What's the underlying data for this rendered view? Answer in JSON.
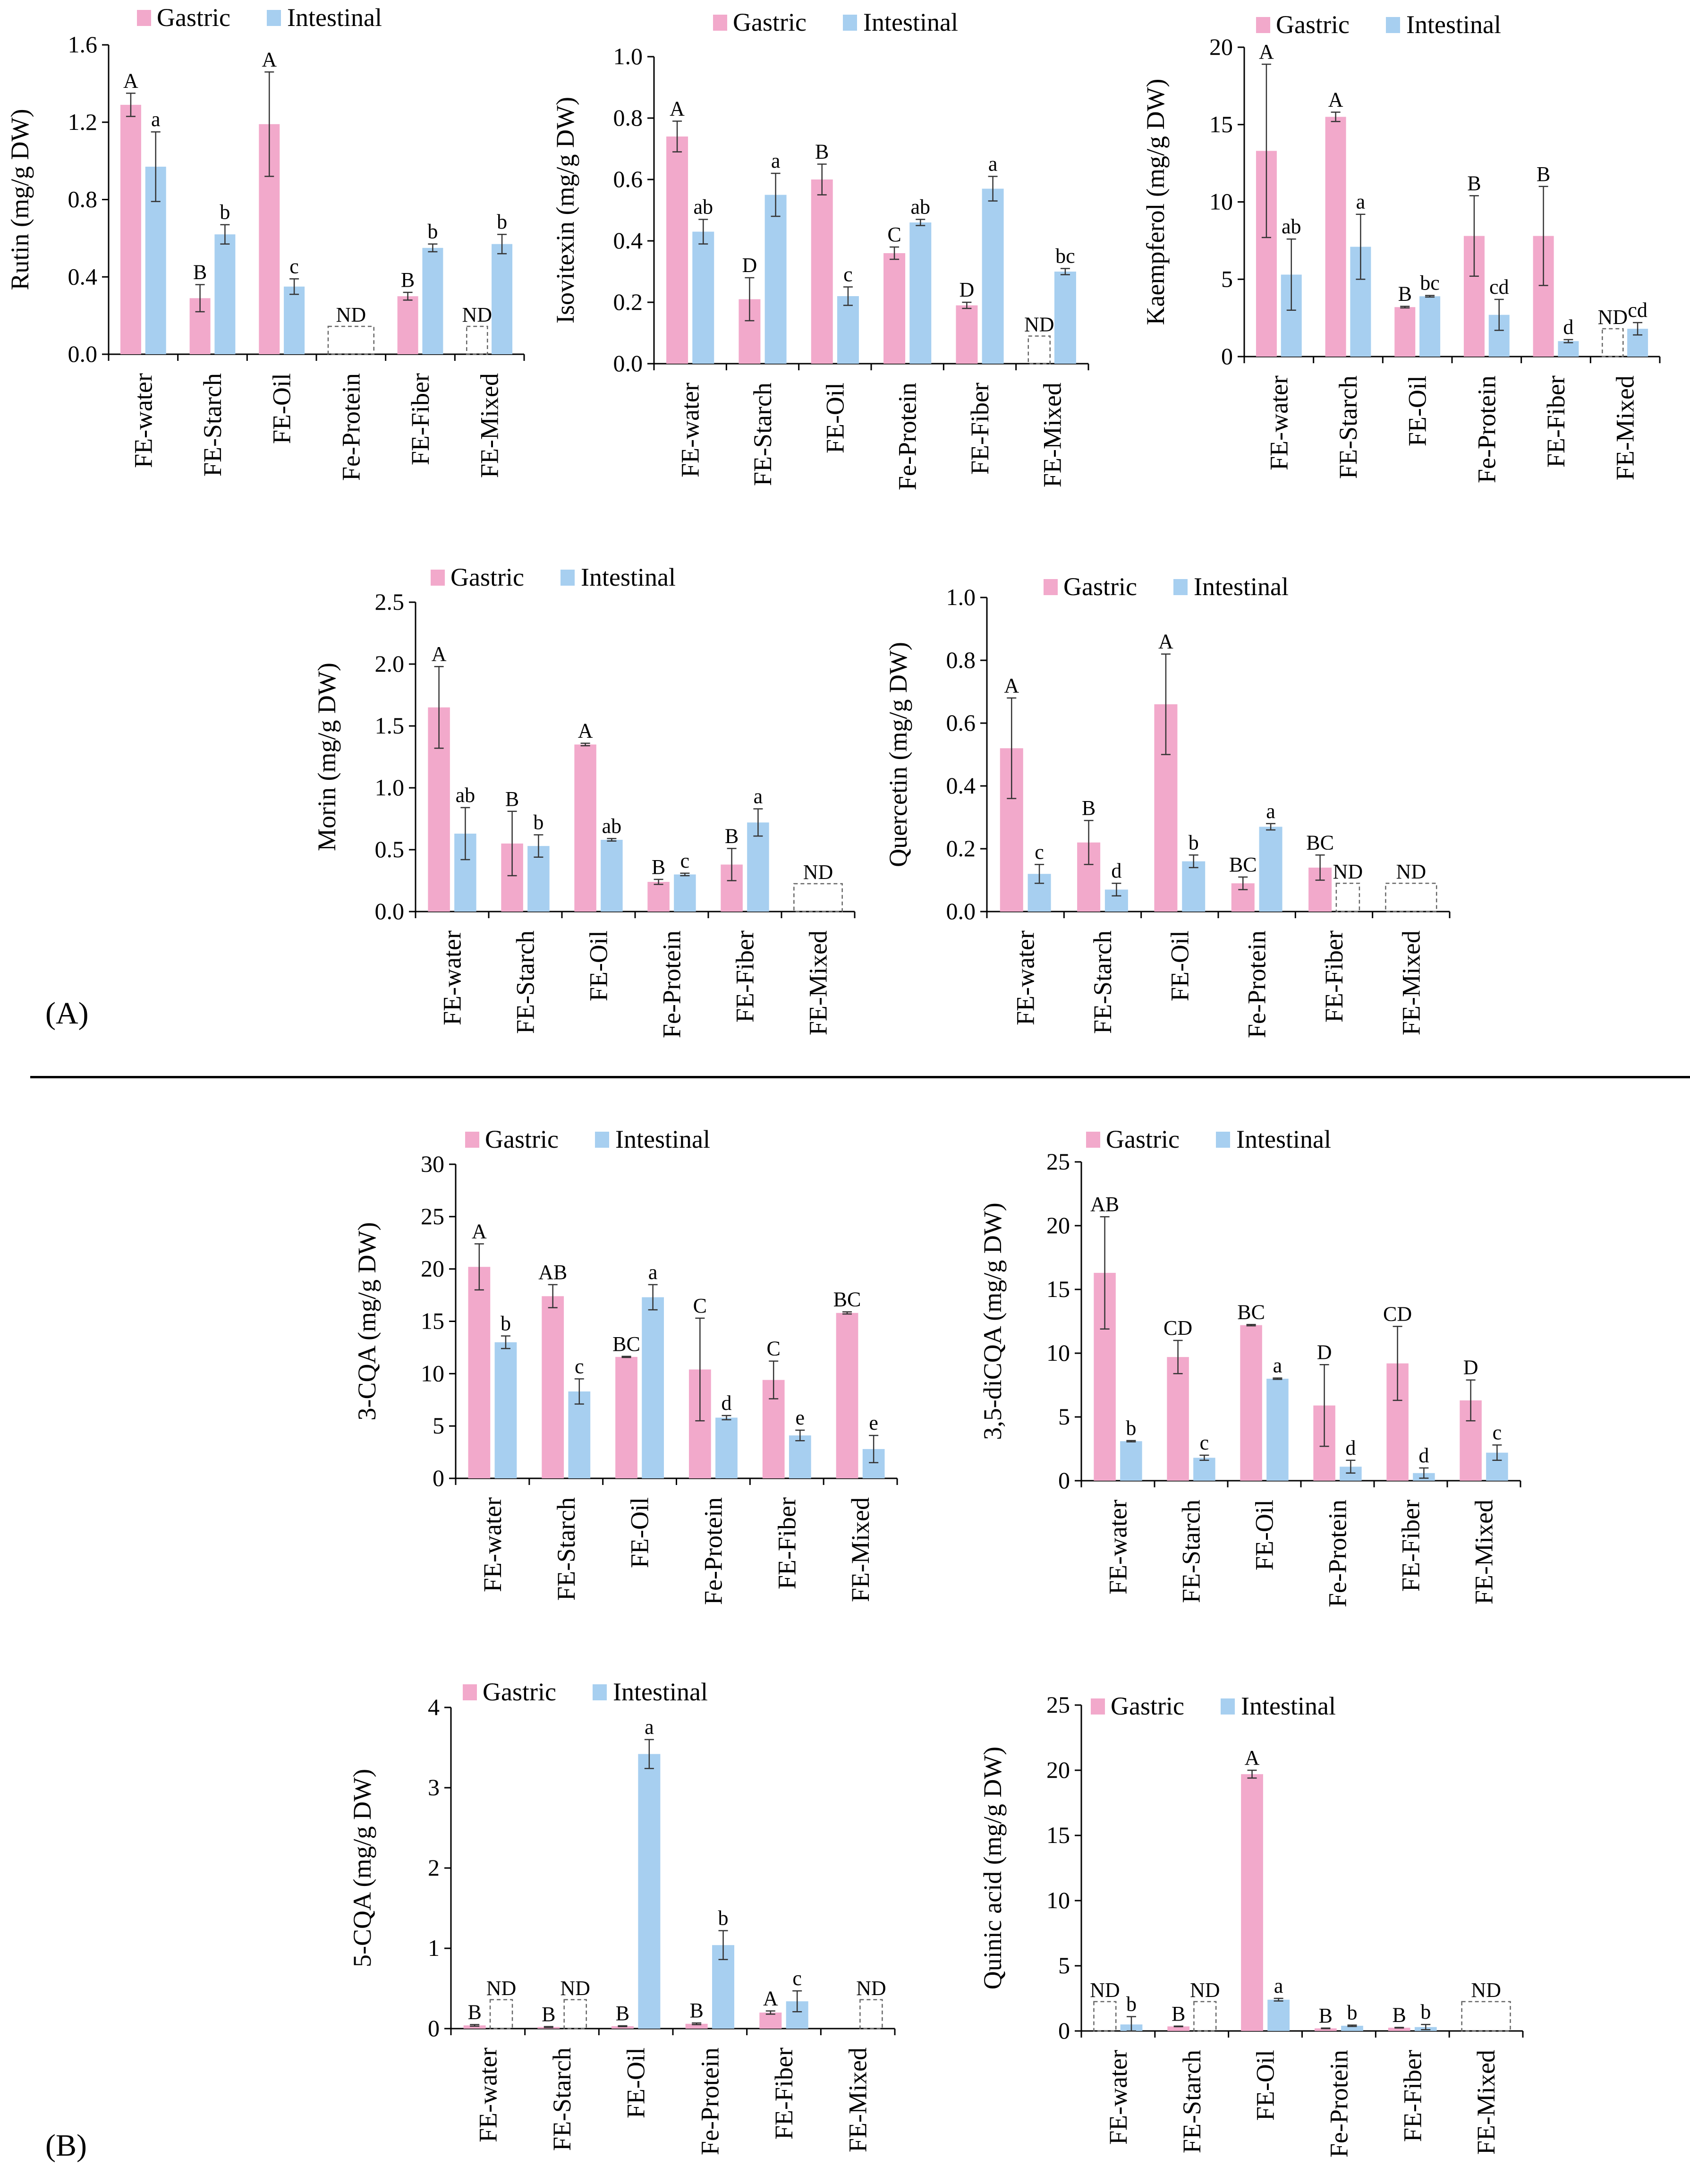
{
  "series_names": [
    "Gastric",
    "Intestinal"
  ],
  "colors": {
    "gastric": "#f2a9cb",
    "intestinal": "#a7cff0",
    "axis": "#000000",
    "error": "#333333",
    "nd_box": "#666666"
  },
  "panel_labels": {
    "a": "(A)",
    "b": "(B)"
  },
  "nd_label": "ND",
  "chart_data": [
    {
      "id": "rutin",
      "type": "bar",
      "panel": "A",
      "ylabel": "Rutin (mg/g DW)",
      "ylim": [
        0,
        1.6
      ],
      "yticks": [
        "0.0",
        "0.4",
        "0.8",
        "1.2",
        "1.6"
      ],
      "categories": [
        "FE-water",
        "FE-Starch",
        "FE-Oil",
        "Fe-Protein",
        "FE-Fiber",
        "FE-Mixed"
      ],
      "series": [
        {
          "name": "Gastric",
          "values": [
            1.29,
            0.29,
            1.19,
            null,
            0.3,
            null
          ],
          "errors": [
            0.06,
            0.07,
            0.27,
            null,
            0.02,
            null
          ],
          "letters": [
            "A",
            "B",
            "A",
            "",
            "B",
            ""
          ]
        },
        {
          "name": "Intestinal",
          "values": [
            0.97,
            0.62,
            0.35,
            null,
            0.55,
            0.57
          ],
          "errors": [
            0.18,
            0.05,
            0.04,
            null,
            0.02,
            0.05
          ],
          "letters": [
            "a",
            "b",
            "c",
            "",
            "b",
            "b"
          ]
        }
      ],
      "nd": [
        {
          "category": "Fe-Protein",
          "series": "both"
        },
        {
          "category": "FE-Mixed",
          "series": "Gastric"
        }
      ]
    },
    {
      "id": "isovitexin",
      "type": "bar",
      "panel": "A",
      "ylabel": "Isovitexin (mg/g DW)",
      "ylim": [
        0,
        1.0
      ],
      "yticks": [
        "0.0",
        "0.2",
        "0.4",
        "0.6",
        "0.8",
        "1.0"
      ],
      "categories": [
        "FE-water",
        "FE-Starch",
        "FE-Oil",
        "Fe-Protein",
        "FE-Fiber",
        "FE-Mixed"
      ],
      "series": [
        {
          "name": "Gastric",
          "values": [
            0.74,
            0.21,
            0.6,
            0.36,
            0.19,
            null
          ],
          "errors": [
            0.05,
            0.07,
            0.05,
            0.02,
            0.01,
            null
          ],
          "letters": [
            "A",
            "D",
            "B",
            "C",
            "D",
            ""
          ]
        },
        {
          "name": "Intestinal",
          "values": [
            0.43,
            0.55,
            0.22,
            0.46,
            0.57,
            0.3
          ],
          "errors": [
            0.04,
            0.07,
            0.03,
            0.01,
            0.04,
            0.01
          ],
          "letters": [
            "ab",
            "a",
            "c",
            "ab",
            "a",
            "bc"
          ]
        }
      ],
      "nd": [
        {
          "category": "FE-Mixed",
          "series": "Gastric"
        }
      ]
    },
    {
      "id": "kaempferol",
      "type": "bar",
      "panel": "A",
      "ylabel": "Kaempferol  (mg/g DW)",
      "ylim": [
        0,
        20
      ],
      "yticks": [
        "0",
        "5",
        "10",
        "15",
        "20"
      ],
      "categories": [
        "FE-water",
        "FE-Starch",
        "FE-Oil",
        "Fe-Protein",
        "FE-Fiber",
        "FE-Mixed"
      ],
      "series": [
        {
          "name": "Gastric",
          "values": [
            13.3,
            15.5,
            3.2,
            7.8,
            7.8,
            null
          ],
          "errors": [
            5.6,
            0.3,
            0.05,
            2.6,
            3.2,
            null
          ],
          "letters": [
            "A",
            "A",
            "B",
            "B",
            "B",
            ""
          ]
        },
        {
          "name": "Intestinal",
          "values": [
            5.3,
            7.1,
            3.9,
            2.7,
            1.0,
            1.8
          ],
          "errors": [
            2.3,
            2.1,
            0.05,
            1.0,
            0.1,
            0.4
          ],
          "letters": [
            "ab",
            "a",
            "bc",
            "cd",
            "d",
            "cd"
          ]
        }
      ],
      "nd": [
        {
          "category": "FE-Mixed",
          "series": "Gastric"
        }
      ]
    },
    {
      "id": "morin",
      "type": "bar",
      "panel": "A",
      "ylabel": "Morin (mg/g DW)",
      "ylim": [
        0,
        2.5
      ],
      "yticks": [
        "0.0",
        "0.5",
        "1.0",
        "1.5",
        "2.0",
        "2.5"
      ],
      "categories": [
        "FE-water",
        "FE-Starch",
        "FE-Oil",
        "Fe-Protein",
        "FE-Fiber",
        "FE-Mixed"
      ],
      "series": [
        {
          "name": "Gastric",
          "values": [
            1.65,
            0.55,
            1.35,
            0.24,
            0.38,
            null
          ],
          "errors": [
            0.33,
            0.26,
            0.01,
            0.02,
            0.13,
            null
          ],
          "letters": [
            "A",
            "B",
            "A",
            "B",
            "B",
            ""
          ]
        },
        {
          "name": "Intestinal",
          "values": [
            0.63,
            0.53,
            0.58,
            0.3,
            0.72,
            null
          ],
          "errors": [
            0.21,
            0.09,
            0.01,
            0.01,
            0.11,
            null
          ],
          "letters": [
            "ab",
            "b",
            "ab",
            "c",
            "a",
            ""
          ]
        }
      ],
      "nd": [
        {
          "category": "FE-Mixed",
          "series": "both"
        }
      ]
    },
    {
      "id": "quercetin",
      "type": "bar",
      "panel": "A",
      "ylabel": "Quercetin (mg/g DW)",
      "ylim": [
        0,
        1.0
      ],
      "yticks": [
        "0.0",
        "0.2",
        "0.4",
        "0.6",
        "0.8",
        "1.0"
      ],
      "categories": [
        "FE-water",
        "FE-Starch",
        "FE-Oil",
        "Fe-Protein",
        "FE-Fiber",
        "FE-Mixed"
      ],
      "series": [
        {
          "name": "Gastric",
          "values": [
            0.52,
            0.22,
            0.66,
            0.09,
            0.14,
            null
          ],
          "errors": [
            0.16,
            0.07,
            0.16,
            0.02,
            0.04,
            null
          ],
          "letters": [
            "A",
            "B",
            "A",
            "BC",
            "BC",
            ""
          ]
        },
        {
          "name": "Intestinal",
          "values": [
            0.12,
            0.07,
            0.16,
            0.27,
            null,
            null
          ],
          "errors": [
            0.03,
            0.02,
            0.02,
            0.01,
            null,
            null
          ],
          "letters": [
            "c",
            "d",
            "b",
            "a",
            "",
            ""
          ]
        }
      ],
      "nd": [
        {
          "category": "FE-Fiber",
          "series": "Intestinal"
        },
        {
          "category": "FE-Mixed",
          "series": "both"
        }
      ]
    },
    {
      "id": "cqa3",
      "type": "bar",
      "panel": "B",
      "ylabel": "3-CQA (mg/g DW)",
      "ylim": [
        0,
        30
      ],
      "yticks": [
        "0",
        "5",
        "10",
        "15",
        "20",
        "25",
        "30"
      ],
      "categories": [
        "FE-water",
        "FE-Starch",
        "FE-Oil",
        "Fe-Protein",
        "FE-Fiber",
        "FE-Mixed"
      ],
      "series": [
        {
          "name": "Gastric",
          "values": [
            20.2,
            17.4,
            11.6,
            10.4,
            9.4,
            15.8
          ],
          "errors": [
            2.2,
            1.1,
            0.05,
            4.9,
            1.8,
            0.1
          ],
          "letters": [
            "A",
            "AB",
            "BC",
            "C",
            "C",
            "BC"
          ]
        },
        {
          "name": "Intestinal",
          "values": [
            13.0,
            8.3,
            17.3,
            5.8,
            4.1,
            2.8
          ],
          "errors": [
            0.6,
            1.2,
            1.2,
            0.2,
            0.5,
            1.3
          ],
          "letters": [
            "b",
            "c",
            "a",
            "d",
            "e",
            "e"
          ]
        }
      ],
      "nd": []
    },
    {
      "id": "dicqa35",
      "type": "bar",
      "panel": "B",
      "ylabel": "3,5-diCQA (mg/g DW)",
      "ylim": [
        0,
        25
      ],
      "yticks": [
        "0",
        "5",
        "10",
        "15",
        "20",
        "25"
      ],
      "categories": [
        "FE-water",
        "FE-Starch",
        "FE-Oil",
        "Fe-Protein",
        "FE-Fiber",
        "FE-Mixed"
      ],
      "series": [
        {
          "name": "Gastric",
          "values": [
            16.3,
            9.7,
            12.2,
            5.9,
            9.2,
            6.3
          ],
          "errors": [
            4.4,
            1.3,
            0.05,
            3.2,
            2.9,
            1.6
          ],
          "letters": [
            "AB",
            "CD",
            "BC",
            "D",
            "CD",
            "D"
          ]
        },
        {
          "name": "Intestinal",
          "values": [
            3.1,
            1.8,
            8.0,
            1.1,
            0.6,
            2.2
          ],
          "errors": [
            0.05,
            0.2,
            0.05,
            0.5,
            0.4,
            0.6
          ],
          "letters": [
            "b",
            "c",
            "a",
            "d",
            "d",
            "c"
          ]
        }
      ],
      "nd": []
    },
    {
      "id": "cqa5",
      "type": "bar",
      "panel": "B",
      "ylabel": "5-CQA  (mg/g DW)",
      "ylim": [
        0,
        4
      ],
      "yticks": [
        "0",
        "1",
        "2",
        "3",
        "4"
      ],
      "categories": [
        "FE-water",
        "FE-Starch",
        "FE-Oil",
        "Fe-Protein",
        "FE-Fiber",
        "FE-Mixed"
      ],
      "series": [
        {
          "name": "Gastric",
          "values": [
            0.04,
            0.02,
            0.03,
            0.06,
            0.2,
            0.0
          ],
          "errors": [
            0.01,
            0.005,
            0.005,
            0.01,
            0.02,
            0.0
          ],
          "letters": [
            "B",
            "B",
            "B",
            "B",
            "A",
            ""
          ]
        },
        {
          "name": "Intestinal",
          "values": [
            null,
            null,
            3.42,
            1.04,
            0.34,
            null
          ],
          "errors": [
            null,
            null,
            0.18,
            0.18,
            0.13,
            null
          ],
          "letters": [
            "",
            "",
            "a",
            "b",
            "c",
            ""
          ]
        }
      ],
      "nd": [
        {
          "category": "FE-water",
          "series": "Intestinal"
        },
        {
          "category": "FE-Starch",
          "series": "Intestinal"
        },
        {
          "category": "FE-Mixed",
          "series": "Intestinal"
        }
      ]
    },
    {
      "id": "quinic",
      "type": "bar",
      "panel": "B",
      "ylabel": "Quinic acid (mg/g DW)",
      "ylim": [
        0,
        25
      ],
      "yticks": [
        "0",
        "5",
        "10",
        "15",
        "20",
        "25"
      ],
      "categories": [
        "FE-water",
        "FE-Starch",
        "FE-Oil",
        "Fe-Protein",
        "FE-Fiber",
        "FE-Mixed"
      ],
      "series": [
        {
          "name": "Gastric",
          "values": [
            null,
            0.35,
            19.7,
            0.2,
            0.25,
            null
          ],
          "errors": [
            null,
            0.02,
            0.3,
            0.02,
            0.02,
            null
          ],
          "letters": [
            "",
            "B",
            "A",
            "B",
            "B",
            ""
          ]
        },
        {
          "name": "Intestinal",
          "values": [
            0.5,
            null,
            2.4,
            0.4,
            0.3,
            null
          ],
          "errors": [
            0.6,
            null,
            0.1,
            0.05,
            0.2,
            null
          ],
          "letters": [
            "b",
            "",
            "a",
            "b",
            "b",
            ""
          ]
        }
      ],
      "nd": [
        {
          "category": "FE-water",
          "series": "Gastric"
        },
        {
          "category": "FE-Starch",
          "series": "Intestinal"
        },
        {
          "category": "FE-Mixed",
          "series": "both"
        }
      ]
    }
  ]
}
